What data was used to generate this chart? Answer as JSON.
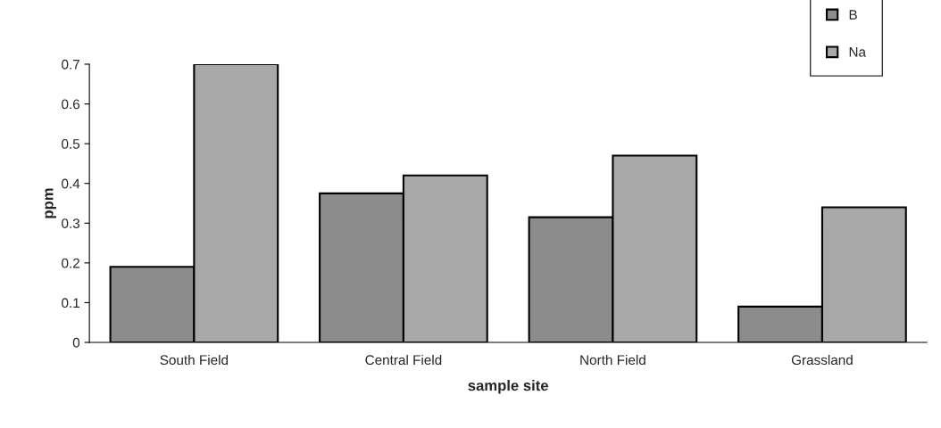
{
  "chart_data": {
    "type": "bar",
    "xlabel": "sample site",
    "ylabel": "ppm",
    "categories": [
      "South Field",
      "Central Field",
      "North Field",
      "Grassland"
    ],
    "series": [
      {
        "name": "B",
        "color": "#8c8c8c",
        "values": [
          0.19,
          0.375,
          0.315,
          0.09
        ]
      },
      {
        "name": "Na",
        "color": "#a8a8a8",
        "values": [
          0.7,
          0.42,
          0.47,
          0.34
        ]
      }
    ],
    "ylim": [
      0,
      0.7
    ],
    "yticks": [
      0,
      0.1,
      0.2,
      0.3,
      0.4,
      0.5,
      0.6,
      0.7
    ],
    "grid": false,
    "legend": "top right"
  }
}
